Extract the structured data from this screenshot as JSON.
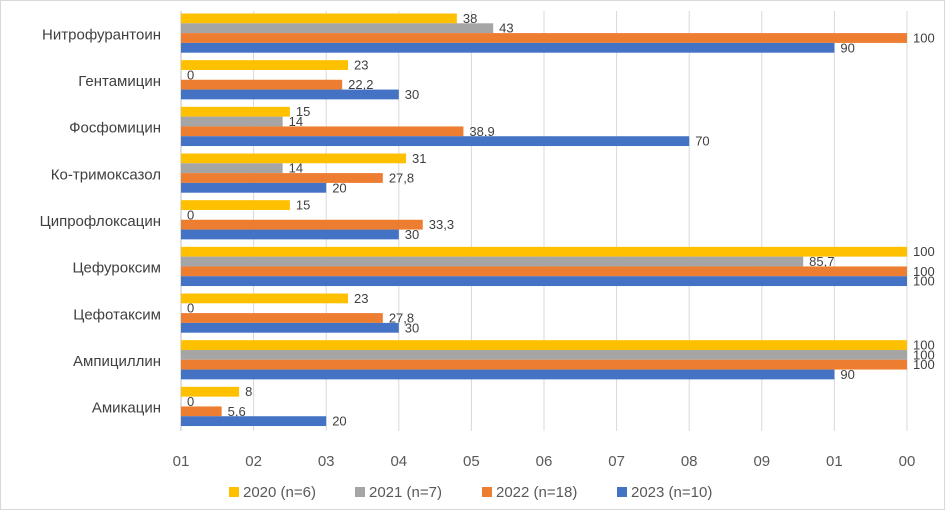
{
  "chart_data": {
    "type": "bar",
    "orientation": "horizontal",
    "categories": [
      "Нитрофурантоин",
      "Гентамицин",
      "Фосфомицин",
      "Ко-тримоксазол",
      "Ципрофлоксацин",
      "Цефуроксим",
      "Цефотаксим",
      "Ампициллин",
      "Амикацин"
    ],
    "series": [
      {
        "name": "2020 (n=6)",
        "color": "#ffc000",
        "values": [
          38,
          23,
          15,
          31,
          15,
          100,
          23,
          100,
          8
        ],
        "labels": [
          "38",
          "23",
          "15",
          "31",
          "15",
          "100",
          "23",
          "100",
          "8"
        ]
      },
      {
        "name": "2021 (n=7)",
        "color": "#a5a5a5",
        "values": [
          43,
          0,
          14,
          14,
          0,
          85.7,
          0,
          100,
          0
        ],
        "labels": [
          "43",
          "0",
          "14",
          "14",
          "0",
          "85,7",
          "0",
          "100",
          "0"
        ]
      },
      {
        "name": "2022 (n=18)",
        "color": "#ed7d31",
        "values": [
          100,
          22.2,
          38.9,
          27.8,
          33.3,
          100,
          27.8,
          100,
          5.6
        ],
        "labels": [
          "100",
          "22,2",
          "38,9",
          "27,8",
          "33,3",
          "100",
          "27,8",
          "100",
          "5,6"
        ]
      },
      {
        "name": "2023 (n=10)",
        "color": "#4472c4",
        "values": [
          90,
          30,
          70,
          20,
          30,
          100,
          30,
          90,
          20
        ],
        "labels": [
          "90",
          "30",
          "70",
          "20",
          "30",
          "100",
          "30",
          "90",
          "20"
        ]
      }
    ],
    "xlim": [
      0,
      100
    ],
    "x_ticks": [
      0,
      10,
      20,
      30,
      40,
      50,
      60,
      70,
      80,
      90,
      100
    ],
    "x_tick_labels": [
      "01",
      "02",
      "03",
      "04",
      "05",
      "06",
      "07",
      "08",
      "09",
      "01",
      "00"
    ],
    "grid": true,
    "legend_position": "bottom",
    "title": "",
    "xlabel": "",
    "ylabel": ""
  }
}
